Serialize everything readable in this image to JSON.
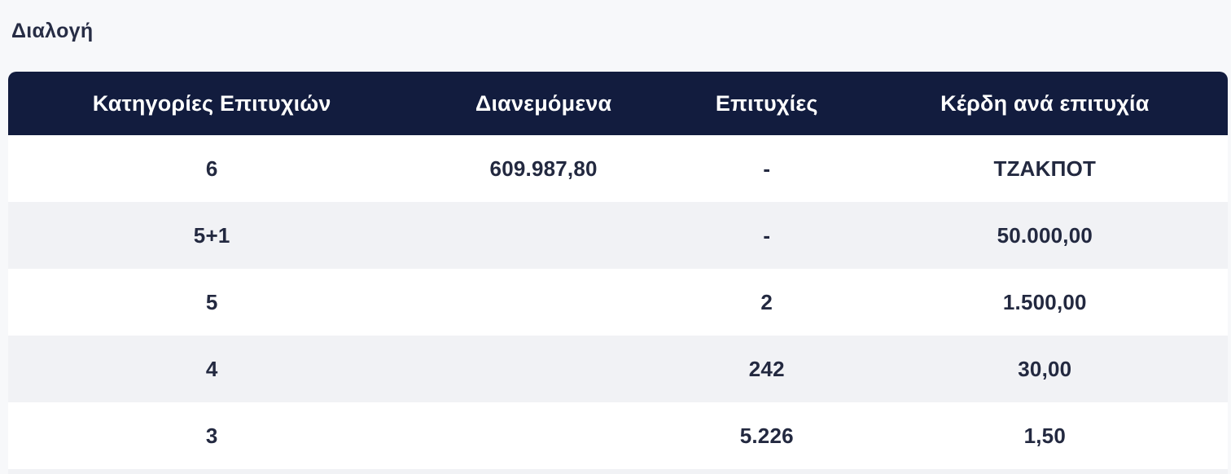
{
  "page": {
    "title": "Διαλογή",
    "background_color": "#f7f8fa"
  },
  "table": {
    "header_bg_color": "#121c3e",
    "header_text_color": "#ffffff",
    "row_bg_color": "#ffffff",
    "row_alt_bg_color": "#f1f2f5",
    "cell_text_color": "#232940",
    "columns": [
      "Κατηγορίες Επιτυχιών",
      "Διανεμόμενα",
      "Επιτυχίες",
      "Κέρδη ανά επιτυχία"
    ],
    "rows": [
      {
        "category": "6",
        "distributed": "609.987,80",
        "winners": "-",
        "winnings_per_win": "ΤΖΑΚΠΟΤ"
      },
      {
        "category": "5+1",
        "distributed": "",
        "winners": "-",
        "winnings_per_win": "50.000,00"
      },
      {
        "category": "5",
        "distributed": "",
        "winners": "2",
        "winnings_per_win": "1.500,00"
      },
      {
        "category": "4",
        "distributed": "",
        "winners": "242",
        "winnings_per_win": "30,00"
      },
      {
        "category": "3",
        "distributed": "",
        "winners": "5.226",
        "winnings_per_win": "1,50"
      }
    ]
  }
}
